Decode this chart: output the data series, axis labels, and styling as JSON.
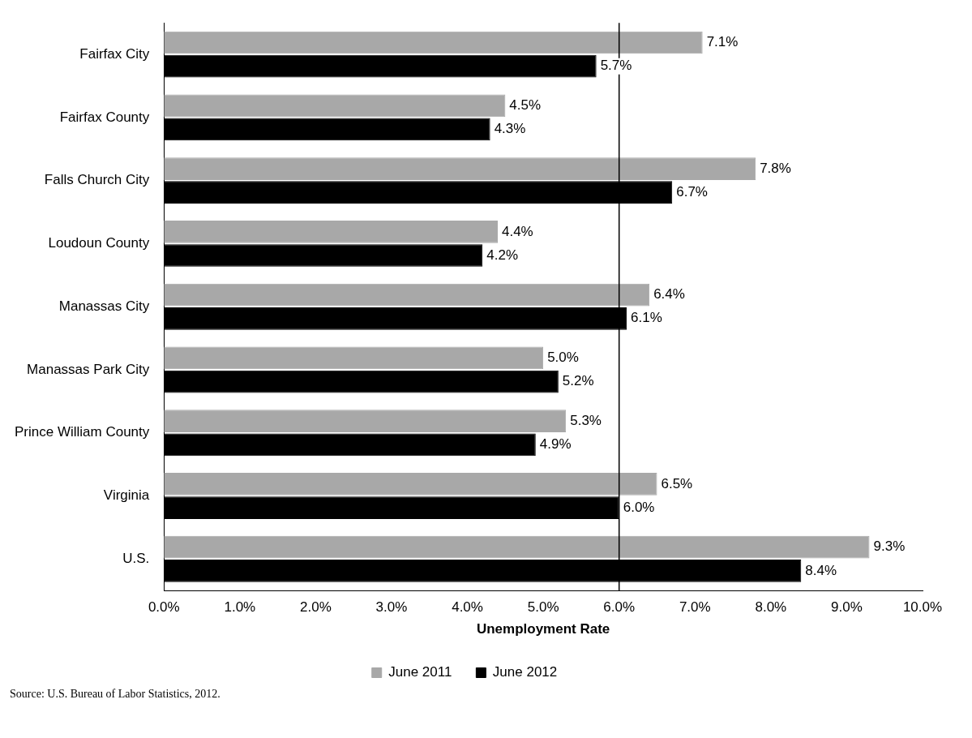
{
  "chart_data": {
    "type": "bar",
    "orientation": "horizontal",
    "xlabel": "Unemployment Rate",
    "categories": [
      "Fairfax City",
      "Fairfax County",
      "Falls Church City",
      "Loudoun County",
      "Manassas City",
      "Manassas Park City",
      "Prince William County",
      "Virginia",
      "U.S."
    ],
    "series": [
      {
        "name": "June 2011",
        "color": "#a8a8a8",
        "values": [
          7.1,
          4.5,
          7.8,
          4.4,
          6.4,
          5.0,
          5.3,
          6.5,
          9.3
        ],
        "value_labels": [
          "7.1%",
          "4.5%",
          "7.8%",
          "4.4%",
          "6.4%",
          "5.0%",
          "5.3%",
          "6.5%",
          "9.3%"
        ]
      },
      {
        "name": "June 2012",
        "color": "#000000",
        "values": [
          5.7,
          4.3,
          6.7,
          4.2,
          6.1,
          5.2,
          4.9,
          6.0,
          8.4
        ],
        "value_labels": [
          "5.7%",
          "4.3%",
          "6.7%",
          "4.2%",
          "6.1%",
          "5.2%",
          "4.9%",
          "6.0%",
          "8.4%"
        ]
      }
    ],
    "xlim": [
      0,
      10
    ],
    "xticks": [
      {
        "value": 0,
        "label": "0.0%"
      },
      {
        "value": 1,
        "label": "1.0%"
      },
      {
        "value": 2,
        "label": "2.0%"
      },
      {
        "value": 3,
        "label": "3.0%"
      },
      {
        "value": 4,
        "label": "4.0%"
      },
      {
        "value": 5,
        "label": "5.0%"
      },
      {
        "value": 6,
        "label": "6.0%"
      },
      {
        "value": 7,
        "label": "7.0%"
      },
      {
        "value": 8,
        "label": "8.0%"
      },
      {
        "value": 9,
        "label": "9.0%"
      },
      {
        "value": 10,
        "label": "10.0%"
      }
    ],
    "ref_lines": [
      {
        "axis": "x",
        "value": 6,
        "color": "#000000"
      }
    ],
    "grid": false,
    "legend": "bottom",
    "annotations": [
      "Source: U.S. Bureau of Labor Statistics, 2012."
    ]
  }
}
